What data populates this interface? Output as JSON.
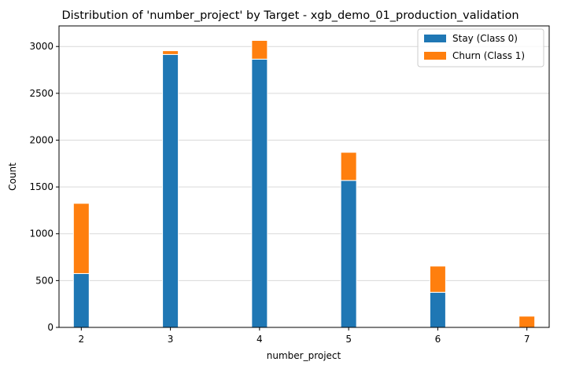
{
  "chart_data": {
    "type": "bar",
    "stacked": true,
    "title": "Distribution of 'number_project' by Target - xgb_demo_01_production_validation",
    "xlabel": "number_project",
    "ylabel": "Count",
    "x": [
      2,
      3,
      4,
      5,
      6,
      7
    ],
    "x_ticks": [
      "2",
      "3",
      "4",
      "5",
      "6",
      "7"
    ],
    "xlim": [
      1.75,
      7.25
    ],
    "y_ticks": [
      "0",
      "500",
      "1000",
      "1500",
      "2000",
      "2500",
      "3000"
    ],
    "ylim": [
      0,
      3220
    ],
    "grid": "horizontal",
    "legend_position": "top-right",
    "series": [
      {
        "name": "Stay (Class 0)",
        "color": "#1f77b4",
        "values": [
          575,
          2915,
          2865,
          1570,
          375,
          0
        ]
      },
      {
        "name": "Churn (Class 1)",
        "color": "#ff7f0e",
        "values": [
          750,
          40,
          200,
          300,
          280,
          120
        ]
      }
    ]
  }
}
